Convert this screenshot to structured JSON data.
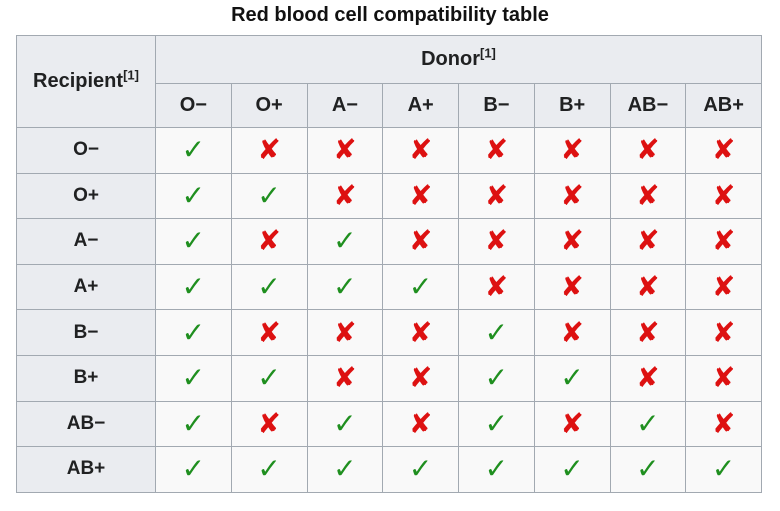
{
  "caption": "Red blood cell compatibility table",
  "header": {
    "recipient": "Recipient",
    "recipient_ref": "[1]",
    "donor": "Donor",
    "donor_ref": "[1]"
  },
  "donor_types": [
    "O−",
    "O+",
    "A−",
    "A+",
    "B−",
    "B+",
    "AB−",
    "AB+"
  ],
  "symbols": {
    "compatible": "✓",
    "incompatible": "✘"
  },
  "colors": {
    "compatible": "#1f8f1f",
    "incompatible": "#dd1111",
    "header_bg": "#eaecf0",
    "border": "#a2a9b1"
  },
  "rows": [
    {
      "recipient": "O−",
      "compatible": [
        true,
        false,
        false,
        false,
        false,
        false,
        false,
        false
      ]
    },
    {
      "recipient": "O+",
      "compatible": [
        true,
        true,
        false,
        false,
        false,
        false,
        false,
        false
      ]
    },
    {
      "recipient": "A−",
      "compatible": [
        true,
        false,
        true,
        false,
        false,
        false,
        false,
        false
      ]
    },
    {
      "recipient": "A+",
      "compatible": [
        true,
        true,
        true,
        true,
        false,
        false,
        false,
        false
      ]
    },
    {
      "recipient": "B−",
      "compatible": [
        true,
        false,
        false,
        false,
        true,
        false,
        false,
        false
      ]
    },
    {
      "recipient": "B+",
      "compatible": [
        true,
        true,
        false,
        false,
        true,
        true,
        false,
        false
      ]
    },
    {
      "recipient": "AB−",
      "compatible": [
        true,
        false,
        true,
        false,
        true,
        false,
        true,
        false
      ]
    },
    {
      "recipient": "AB+",
      "compatible": [
        true,
        true,
        true,
        true,
        true,
        true,
        true,
        true
      ]
    }
  ]
}
